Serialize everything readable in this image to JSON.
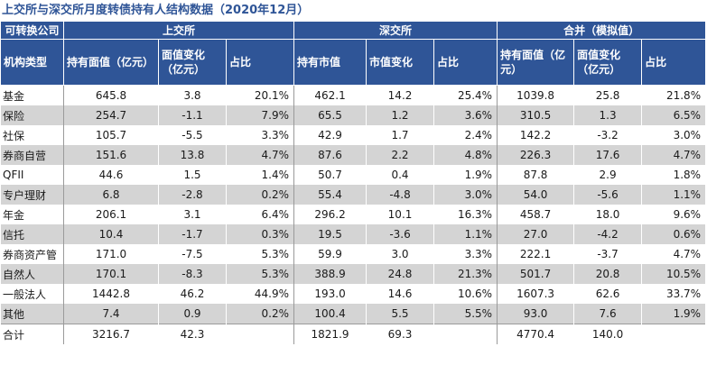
{
  "title": "上交所与深交所月度转债持有人结构数据（2020年12月）",
  "header": {
    "corner_top": "可转换公司",
    "corner_bottom": "机构类型",
    "groups": [
      "上交所",
      "深交所",
      "合并（模拟值）"
    ],
    "sh_cols": [
      "持有面值（亿元）",
      "面值变化（亿元）",
      "占比"
    ],
    "sz_cols": [
      "持有市值",
      "市值变化",
      "占比"
    ],
    "total_cols": [
      "持有面值（亿元）",
      "面值变化（亿元）",
      "占比"
    ]
  },
  "rows": [
    {
      "name": "基金",
      "v": [
        "645.8",
        "3.8",
        "20.1%",
        "462.1",
        "14.2",
        "25.4%",
        "1039.8",
        "25.8",
        "21.8%"
      ]
    },
    {
      "name": "保险",
      "v": [
        "254.7",
        "-1.1",
        "7.9%",
        "65.5",
        "1.2",
        "3.6%",
        "310.5",
        "1.3",
        "6.5%"
      ]
    },
    {
      "name": "社保",
      "v": [
        "105.7",
        "-5.5",
        "3.3%",
        "42.9",
        "1.7",
        "2.4%",
        "142.2",
        "-3.2",
        "3.0%"
      ]
    },
    {
      "name": "券商自营",
      "v": [
        "151.6",
        "13.8",
        "4.7%",
        "87.6",
        "2.2",
        "4.8%",
        "226.3",
        "17.6",
        "4.7%"
      ]
    },
    {
      "name": "QFII",
      "v": [
        "44.6",
        "1.5",
        "1.4%",
        "50.7",
        "0.4",
        "1.9%",
        "87.8",
        "2.9",
        "1.8%"
      ]
    },
    {
      "name": "专户理财",
      "v": [
        "6.8",
        "-2.8",
        "0.2%",
        "55.4",
        "-4.8",
        "3.0%",
        "54.0",
        "-5.6",
        "1.1%"
      ]
    },
    {
      "name": "年金",
      "v": [
        "206.1",
        "3.1",
        "6.4%",
        "296.2",
        "10.1",
        "16.3%",
        "458.7",
        "18.0",
        "9.6%"
      ]
    },
    {
      "name": "信托",
      "v": [
        "10.4",
        "-1.7",
        "0.3%",
        "19.5",
        "-3.6",
        "1.1%",
        "27.0",
        "-4.2",
        "0.6%"
      ]
    },
    {
      "name": "券商资产管",
      "v": [
        "171.0",
        "-7.5",
        "5.3%",
        "59.9",
        "3.0",
        "3.3%",
        "222.1",
        "-3.7",
        "4.7%"
      ]
    },
    {
      "name": "自然人",
      "v": [
        "170.1",
        "-8.3",
        "5.3%",
        "388.9",
        "24.8",
        "21.3%",
        "501.7",
        "20.8",
        "10.5%"
      ]
    },
    {
      "name": "一般法人",
      "v": [
        "1442.8",
        "46.2",
        "44.9%",
        "193.0",
        "14.6",
        "10.6%",
        "1607.3",
        "62.6",
        "33.7%"
      ]
    },
    {
      "name": "其他",
      "v": [
        "7.4",
        "0.9",
        "0.2%",
        "100.4",
        "5.5",
        "5.5%",
        "93.0",
        "7.6",
        "1.9%"
      ]
    }
  ],
  "total": {
    "name": "合计",
    "v": [
      "3216.7",
      "42.3",
      "",
      "1821.9",
      "69.3",
      "",
      "4770.4",
      "140.0",
      ""
    ]
  }
}
